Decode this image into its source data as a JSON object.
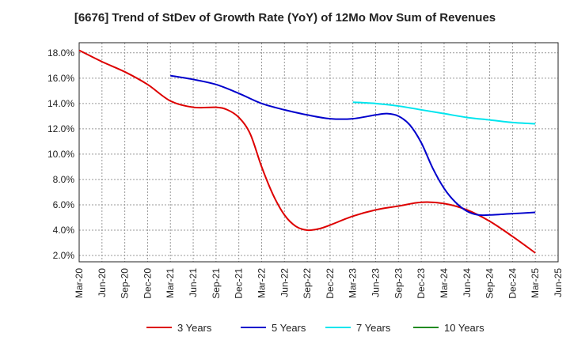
{
  "chart_data": {
    "type": "line",
    "title": "[6676]  Trend of StDev of Growth Rate (YoY) of 12Mo Mov Sum of Revenues",
    "xlabel": "",
    "ylabel": "",
    "x_ticks": [
      "Mar-20",
      "Jun-20",
      "Sep-20",
      "Dec-20",
      "Mar-21",
      "Jun-21",
      "Sep-21",
      "Dec-21",
      "Mar-22",
      "Jun-22",
      "Sep-22",
      "Dec-22",
      "Mar-23",
      "Jun-23",
      "Sep-23",
      "Dec-23",
      "Mar-24",
      "Jun-24",
      "Sep-24",
      "Dec-24",
      "Mar-25",
      "Jun-25"
    ],
    "y_ticks": [
      "2.0%",
      "4.0%",
      "6.0%",
      "8.0%",
      "10.0%",
      "12.0%",
      "14.0%",
      "16.0%",
      "18.0%"
    ],
    "ylim": [
      1.5,
      18.8
    ],
    "grid": true,
    "legend_position": "bottom",
    "series": [
      {
        "name": "3 Years",
        "color": "#dd0000",
        "points": [
          [
            0,
            18.2
          ],
          [
            1,
            17.3
          ],
          [
            2,
            16.5
          ],
          [
            3,
            15.5
          ],
          [
            4,
            14.2
          ],
          [
            5,
            13.7
          ],
          [
            6,
            13.7
          ],
          [
            6.5,
            13.5
          ],
          [
            7,
            12.9
          ],
          [
            7.5,
            11.6
          ],
          [
            8,
            9.0
          ],
          [
            8.5,
            6.8
          ],
          [
            9,
            5.2
          ],
          [
            9.5,
            4.3
          ],
          [
            10,
            4.0
          ],
          [
            10.5,
            4.1
          ],
          [
            11,
            4.4
          ],
          [
            12,
            5.1
          ],
          [
            13,
            5.6
          ],
          [
            14,
            5.9
          ],
          [
            15,
            6.2
          ],
          [
            16,
            6.1
          ],
          [
            17,
            5.6
          ],
          [
            18,
            4.7
          ],
          [
            19,
            3.5
          ],
          [
            20,
            2.2
          ]
        ]
      },
      {
        "name": "5 Years",
        "color": "#0000cc",
        "points": [
          [
            4,
            16.2
          ],
          [
            5,
            15.9
          ],
          [
            6,
            15.5
          ],
          [
            7,
            14.8
          ],
          [
            8,
            14.0
          ],
          [
            9,
            13.5
          ],
          [
            10,
            13.1
          ],
          [
            11,
            12.8
          ],
          [
            12,
            12.8
          ],
          [
            13,
            13.1
          ],
          [
            13.5,
            13.2
          ],
          [
            14,
            13.0
          ],
          [
            14.5,
            12.3
          ],
          [
            15,
            10.9
          ],
          [
            15.5,
            8.9
          ],
          [
            16,
            7.3
          ],
          [
            16.5,
            6.2
          ],
          [
            17,
            5.5
          ],
          [
            17.5,
            5.2
          ],
          [
            18,
            5.2
          ],
          [
            19,
            5.3
          ],
          [
            20,
            5.4
          ]
        ]
      },
      {
        "name": "7 Years",
        "color": "#00e5ee",
        "points": [
          [
            12,
            14.1
          ],
          [
            13,
            14.0
          ],
          [
            14,
            13.8
          ],
          [
            15,
            13.5
          ],
          [
            16,
            13.2
          ],
          [
            17,
            12.9
          ],
          [
            18,
            12.7
          ],
          [
            19,
            12.5
          ],
          [
            20,
            12.4
          ]
        ]
      },
      {
        "name": "10 Years",
        "color": "#228b22",
        "points": []
      }
    ]
  }
}
